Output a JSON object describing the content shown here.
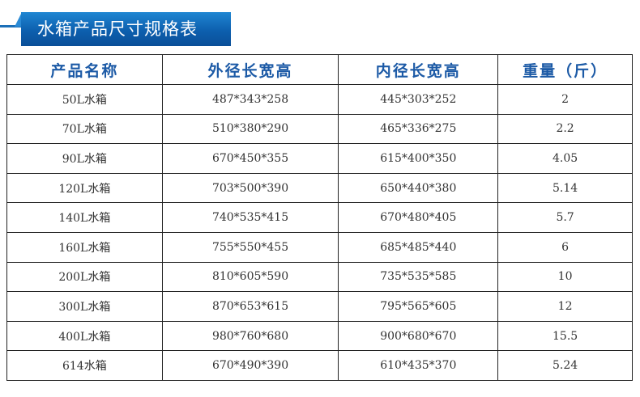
{
  "title": "水箱产品尺寸规格表",
  "colors": {
    "banner": "#0d5fae",
    "header_text": "#1c5aa6"
  },
  "headers": [
    "产品名称",
    "外径长宽高",
    "内径长宽高",
    "重量（斤）"
  ],
  "rows": [
    [
      "50L水箱",
      "487*343*258",
      "445*303*252",
      "2"
    ],
    [
      "70L水箱",
      "510*380*290",
      "465*336*275",
      "2.2"
    ],
    [
      "90L水箱",
      "670*450*355",
      "615*400*350",
      "4.05"
    ],
    [
      "120L水箱",
      "703*500*390",
      "650*440*380",
      "5.14"
    ],
    [
      "140L水箱",
      "740*535*415",
      "670*480*405",
      "5.7"
    ],
    [
      "160L水箱",
      "755*550*455",
      "685*485*440",
      "6"
    ],
    [
      "200L水箱",
      "810*605*590",
      "735*535*585",
      "10"
    ],
    [
      "300L水箱",
      "870*653*615",
      "795*565*605",
      "12"
    ],
    [
      "400L水箱",
      "980*760*680",
      "900*680*670",
      "15.5"
    ],
    [
      "614水箱",
      "670*490*390",
      "610*435*370",
      "5.24"
    ]
  ]
}
